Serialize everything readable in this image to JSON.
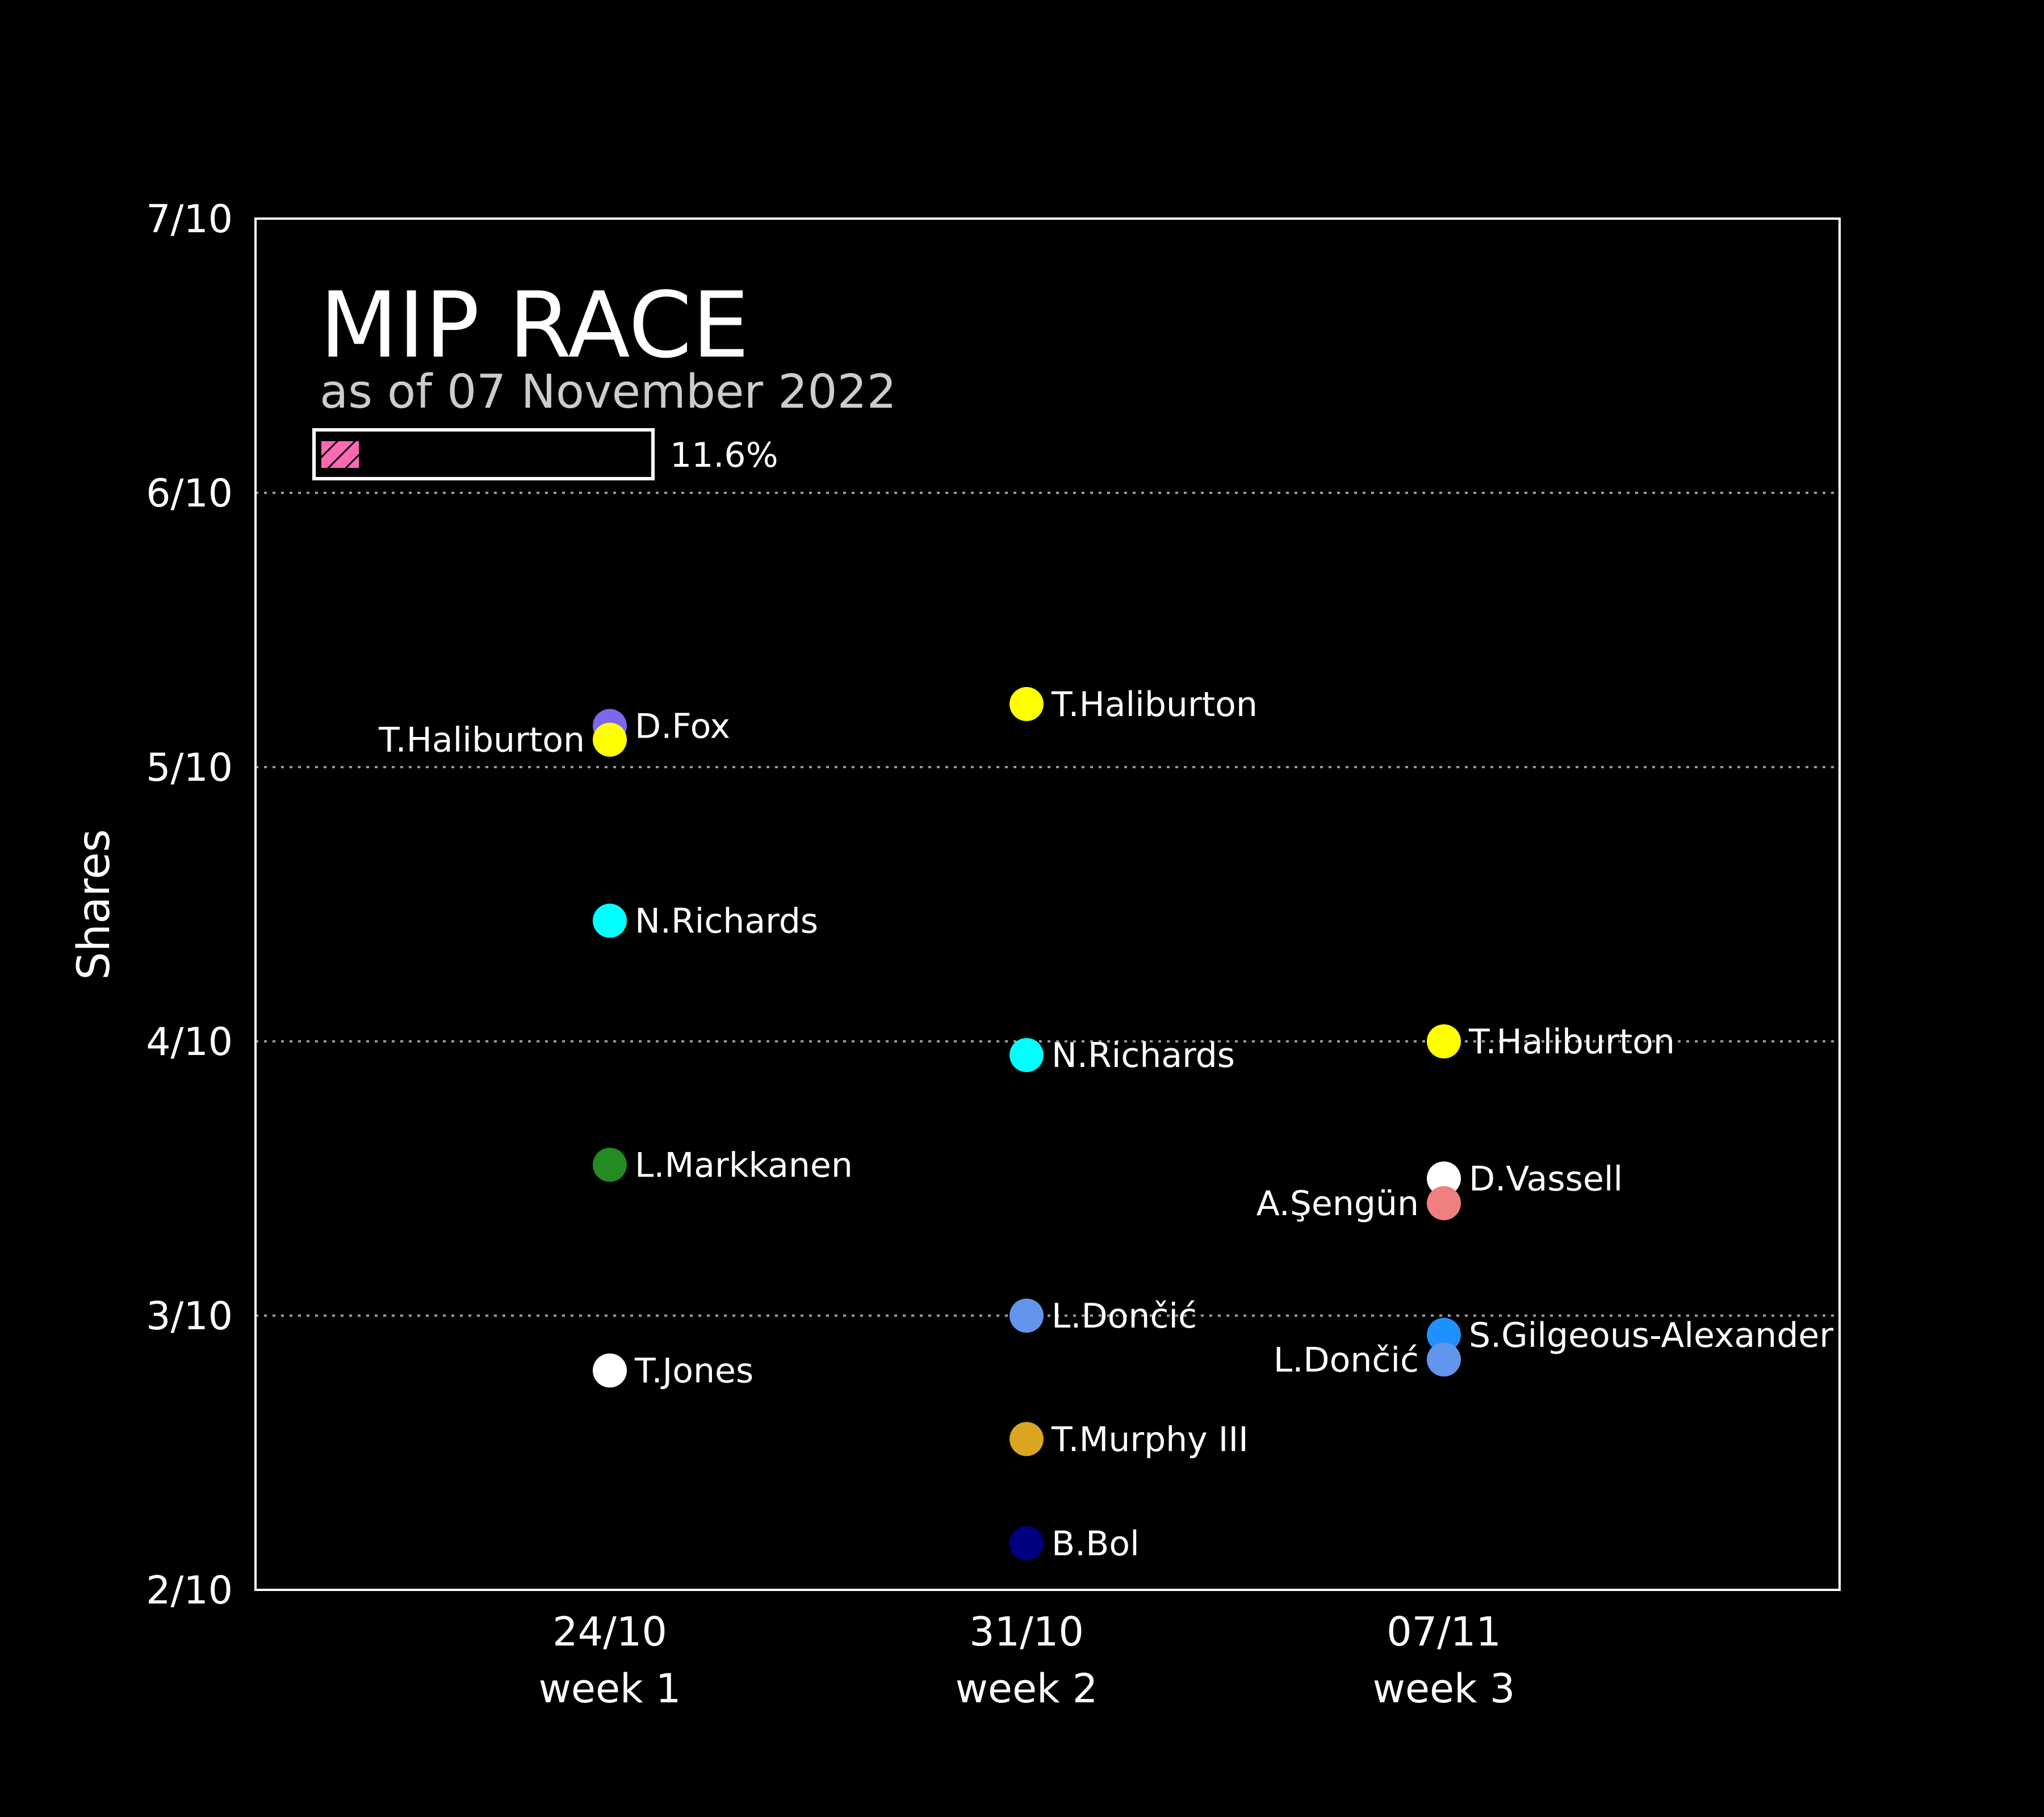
{
  "chart_data": {
    "type": "scatter",
    "title": "MIP RACE",
    "subtitle": "as of 07 November 2022",
    "ylabel": "Shares",
    "xlabel": "",
    "ylim": [
      0.2,
      0.7
    ],
    "y_ticks": [
      "2/10",
      "3/10",
      "4/10",
      "5/10",
      "6/10",
      "7/10"
    ],
    "y_tick_values": [
      0.2,
      0.3,
      0.4,
      0.5,
      0.6,
      0.7
    ],
    "grid": "horizontal dotted",
    "progress": {
      "label": "11.6%",
      "value": 0.116,
      "color": "#ff69b4"
    },
    "x_categories": [
      {
        "date": "24/10",
        "week": "week 1"
      },
      {
        "date": "31/10",
        "week": "week 2"
      },
      {
        "date": "07/11",
        "week": "week 3"
      }
    ],
    "points": [
      {
        "week": 0,
        "player": "D.Fox",
        "y": 0.515,
        "color": "#7b68ee",
        "label_side": "right"
      },
      {
        "week": 0,
        "player": "T.Haliburton",
        "y": 0.51,
        "color": "#ffff00",
        "label_side": "left"
      },
      {
        "week": 0,
        "player": "N.Richards",
        "y": 0.444,
        "color": "#00ffff",
        "label_side": "right"
      },
      {
        "week": 0,
        "player": "L.Markkanen",
        "y": 0.355,
        "color": "#228b22",
        "label_side": "right"
      },
      {
        "week": 0,
        "player": "T.Jones",
        "y": 0.28,
        "color": "#ffffff",
        "label_side": "right"
      },
      {
        "week": 1,
        "player": "T.Haliburton",
        "y": 0.523,
        "color": "#ffff00",
        "label_side": "right"
      },
      {
        "week": 1,
        "player": "N.Richards",
        "y": 0.395,
        "color": "#00ffff",
        "label_side": "right"
      },
      {
        "week": 1,
        "player": "L.Dončić",
        "y": 0.3,
        "color": "#6495ed",
        "label_side": "right"
      },
      {
        "week": 1,
        "player": "T.Murphy III",
        "y": 0.255,
        "color": "#daa520",
        "label_side": "right"
      },
      {
        "week": 1,
        "player": "B.Bol",
        "y": 0.217,
        "color": "#000080",
        "label_side": "right"
      },
      {
        "week": 2,
        "player": "T.Haliburton",
        "y": 0.4,
        "color": "#ffff00",
        "label_side": "right"
      },
      {
        "week": 2,
        "player": "D.Vassell",
        "y": 0.35,
        "color": "#ffffff",
        "label_side": "right"
      },
      {
        "week": 2,
        "player": "A.Şengün",
        "y": 0.341,
        "color": "#f08080",
        "label_side": "left"
      },
      {
        "week": 2,
        "player": "S.Gilgeous-Alexander",
        "y": 0.293,
        "color": "#1e90ff",
        "label_side": "right"
      },
      {
        "week": 2,
        "player": "L.Dončić",
        "y": 0.284,
        "color": "#6495ed",
        "label_side": "left"
      }
    ]
  }
}
